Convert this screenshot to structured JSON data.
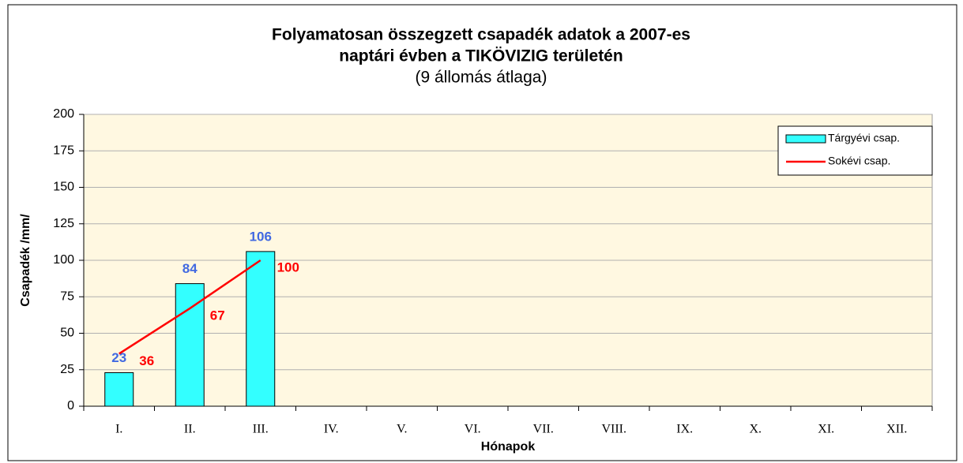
{
  "chart_data": {
    "type": "bar",
    "title": [
      "Folyamatosan összegzett csapadék adatok a 2007-es",
      "naptári évben a TIKÖVIZIG területén"
    ],
    "subtitle": "(9 állomás átlaga)",
    "x_label": "Hónapok",
    "y_label": "Csapadék /mm/",
    "categories": [
      "I.",
      "II.",
      "III.",
      "IV.",
      "V.",
      "VI.",
      "VII.",
      "VIII.",
      "IX.",
      "X.",
      "XI.",
      "XII."
    ],
    "series": [
      {
        "name": "Tárgyévi csap.",
        "type": "bar",
        "color": "#33ffff",
        "label_color": "#4169e1",
        "values": [
          23,
          84,
          106,
          null,
          null,
          null,
          null,
          null,
          null,
          null,
          null,
          null
        ]
      },
      {
        "name": "Sokévi csap.",
        "type": "line",
        "color": "#ff0000",
        "label_color": "#ff0000",
        "values": [
          36,
          67,
          100,
          null,
          null,
          null,
          null,
          null,
          null,
          null,
          null,
          null
        ]
      }
    ],
    "ylim": [
      0,
      200
    ],
    "yticks": [
      0,
      25,
      50,
      75,
      100,
      125,
      150,
      175,
      200
    ],
    "grid": true,
    "legend": "top-right"
  }
}
